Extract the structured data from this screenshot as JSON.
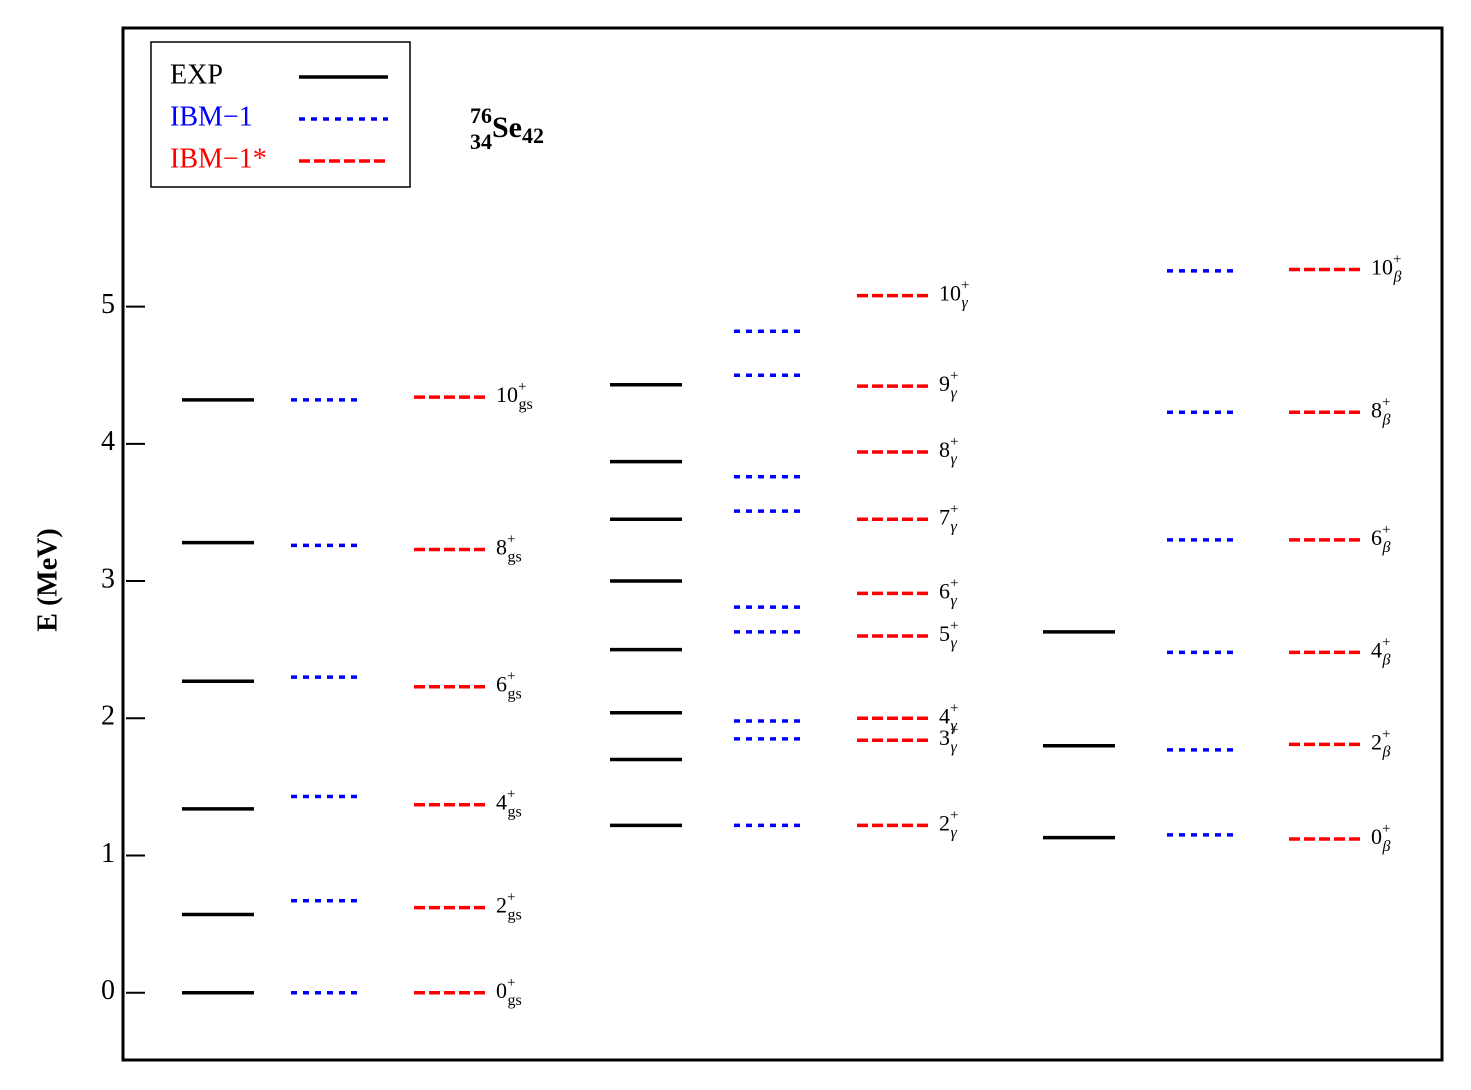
{
  "chart_data": {
    "type": "level-scheme",
    "nucleus": {
      "mass": "76",
      "atomic": "34",
      "symbol": "Se",
      "neutron": "42"
    },
    "ylabel": "E (MeV)",
    "ylim": [
      -0.49,
      7.03
    ],
    "yticks": [
      0,
      1,
      2,
      3,
      4,
      5
    ],
    "parity": "+",
    "bands": [
      {
        "subscript": "gs",
        "spins": [
          "0",
          "2",
          "4",
          "6",
          "8",
          "10"
        ]
      },
      {
        "subscript": "γ",
        "spins": [
          "2",
          "3",
          "4",
          "5",
          "6",
          "7",
          "8",
          "9",
          "10"
        ]
      },
      {
        "subscript": "β",
        "spins": [
          "0",
          "2",
          "4",
          "6",
          "8",
          "10"
        ]
      }
    ],
    "series": [
      {
        "name": "EXP",
        "color": "#000000",
        "style": "solid",
        "values": [
          [
            0,
            0.57,
            1.34,
            2.27,
            3.28,
            4.32
          ],
          [
            1.22,
            1.7,
            2.04,
            2.5,
            3.0,
            3.45,
            3.87,
            4.43,
            null
          ],
          [
            1.13,
            1.8,
            2.63,
            null,
            null,
            null
          ]
        ]
      },
      {
        "name": "IBM−1",
        "color": "#0000ff",
        "style": "dotted",
        "values": [
          [
            0,
            0.67,
            1.43,
            2.3,
            3.26,
            4.32
          ],
          [
            1.22,
            1.85,
            1.98,
            2.63,
            2.81,
            3.51,
            3.76,
            4.5,
            4.82
          ],
          [
            1.15,
            1.77,
            2.48,
            3.3,
            4.23,
            5.26
          ]
        ]
      },
      {
        "name": "IBM−1*",
        "color": "#ff0000",
        "style": "dashed",
        "values": [
          [
            0,
            0.62,
            1.37,
            2.23,
            3.23,
            4.34
          ],
          [
            1.22,
            1.84,
            2.0,
            2.6,
            2.91,
            3.45,
            3.94,
            4.42,
            5.08
          ],
          [
            1.12,
            1.81,
            2.48,
            3.3,
            4.23,
            5.27
          ]
        ]
      }
    ]
  }
}
